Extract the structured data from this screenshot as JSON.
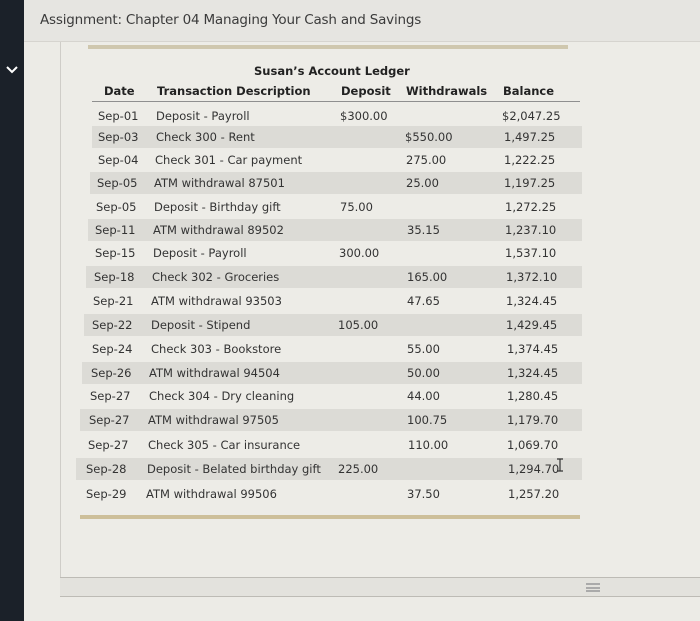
{
  "header": {
    "title": "Assignment: Chapter 04 Managing Your Cash and Savings"
  },
  "icons": {
    "sidebar_toggle": "chevron-down-icon",
    "scroll_grip": "grip-icon",
    "text_cursor": "text-cursor-icon"
  },
  "ledger": {
    "title": "Susan’s Account Ledger",
    "columns": {
      "date": "Date",
      "description": "Transaction Description",
      "deposit": "Deposit",
      "withdrawals": "Withdrawals",
      "balance": "Balance"
    },
    "rows": [
      {
        "date": "Sep-01",
        "description": "Deposit - Payroll",
        "deposit": "$300.00",
        "withdrawal": "",
        "balance": "$2,047.25"
      },
      {
        "date": "Sep-03",
        "description": "Check 300 - Rent",
        "deposit": "",
        "withdrawal": "$550.00",
        "balance": "1,497.25"
      },
      {
        "date": "Sep-04",
        "description": "Check 301 - Car payment",
        "deposit": "",
        "withdrawal": "275.00",
        "balance": "1,222.25"
      },
      {
        "date": "Sep-05",
        "description": "ATM withdrawal 87501",
        "deposit": "",
        "withdrawal": "25.00",
        "balance": "1,197.25"
      },
      {
        "date": "Sep-05",
        "description": "Deposit - Birthday gift",
        "deposit": "75.00",
        "withdrawal": "",
        "balance": "1,272.25"
      },
      {
        "date": "Sep-11",
        "description": "ATM withdrawal 89502",
        "deposit": "",
        "withdrawal": "35.15",
        "balance": "1,237.10"
      },
      {
        "date": "Sep-15",
        "description": "Deposit - Payroll",
        "deposit": "300.00",
        "withdrawal": "",
        "balance": "1,537.10"
      },
      {
        "date": "Sep-18",
        "description": "Check 302 - Groceries",
        "deposit": "",
        "withdrawal": "165.00",
        "balance": "1,372.10"
      },
      {
        "date": "Sep-21",
        "description": "ATM withdrawal 93503",
        "deposit": "",
        "withdrawal": "47.65",
        "balance": "1,324.45"
      },
      {
        "date": "Sep-22",
        "description": "Deposit - Stipend",
        "deposit": "105.00",
        "withdrawal": "",
        "balance": "1,429.45"
      },
      {
        "date": "Sep-24",
        "description": "Check 303 - Bookstore",
        "deposit": "",
        "withdrawal": "55.00",
        "balance": "1,374.45"
      },
      {
        "date": "Sep-26",
        "description": "ATM withdrawal 94504",
        "deposit": "",
        "withdrawal": "50.00",
        "balance": "1,324.45"
      },
      {
        "date": "Sep-27",
        "description": "Check 304 - Dry cleaning",
        "deposit": "",
        "withdrawal": "44.00",
        "balance": "1,280.45"
      },
      {
        "date": "Sep-27",
        "description": "ATM withdrawal 97505",
        "deposit": "",
        "withdrawal": "100.75",
        "balance": "1,179.70"
      },
      {
        "date": "Sep-27",
        "description": "Check 305 - Car insurance",
        "deposit": "",
        "withdrawal": "110.00",
        "balance": "1,069.70"
      },
      {
        "date": "Sep-28",
        "description": "Deposit - Belated birthday gift",
        "deposit": "225.00",
        "withdrawal": "",
        "balance": "1,294.70"
      },
      {
        "date": "Sep-29",
        "description": "ATM withdrawal 99506",
        "deposit": "",
        "withdrawal": "37.50",
        "balance": "1,257.20"
      }
    ]
  }
}
